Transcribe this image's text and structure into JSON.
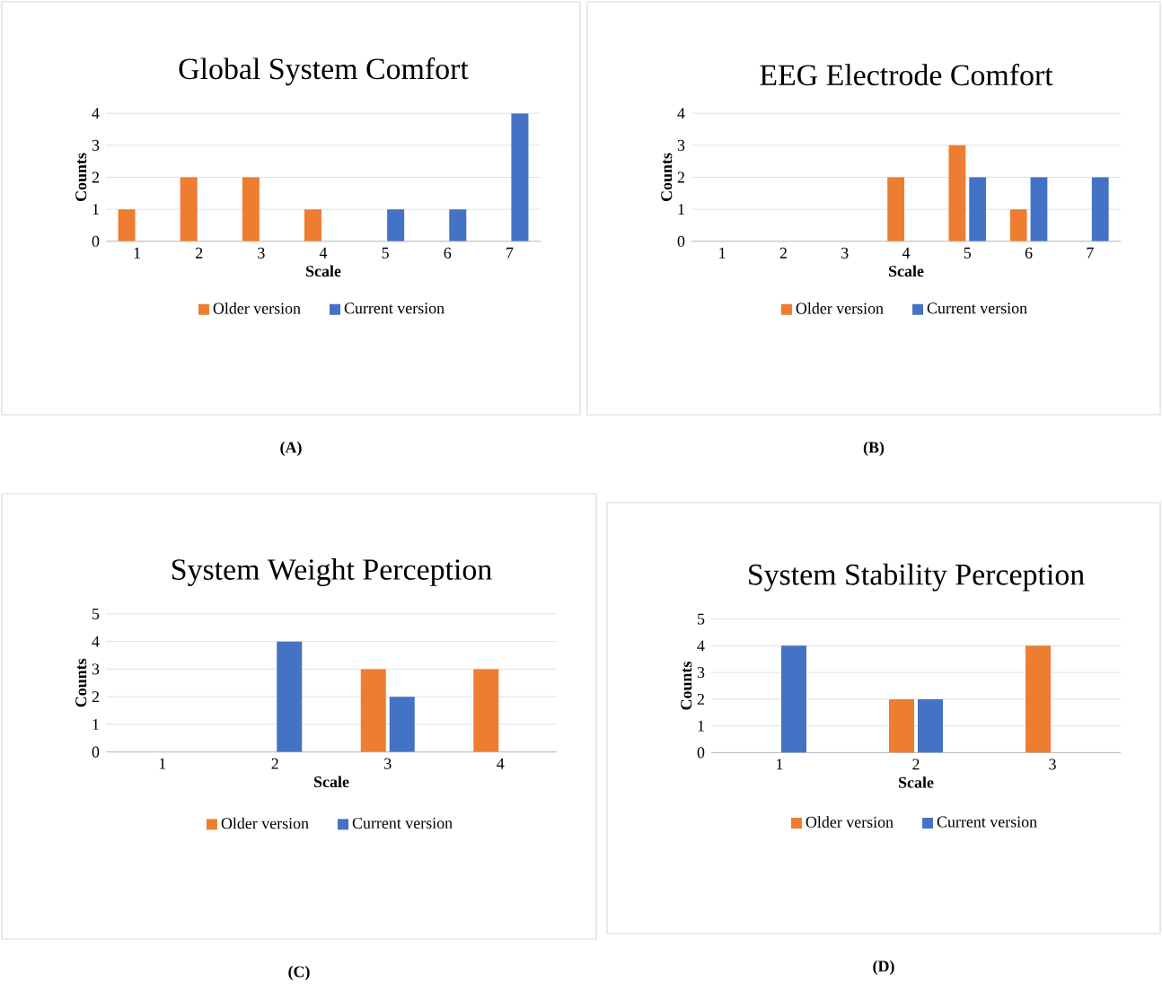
{
  "chart_data": [
    {
      "type": "bar",
      "title": "Global System Comfort",
      "xlabel": "Scale",
      "ylabel": "Counts",
      "categories": [
        "1",
        "2",
        "3",
        "4",
        "5",
        "6",
        "7"
      ],
      "series": [
        {
          "name": "Older version",
          "color": "#ed7d31",
          "values": [
            1,
            2,
            2,
            1,
            0,
            0,
            0
          ]
        },
        {
          "name": "Current version",
          "color": "#4472c4",
          "values": [
            0,
            0,
            0,
            0,
            1,
            1,
            4
          ]
        }
      ],
      "ylim": [
        0,
        4
      ],
      "yticks": [
        0,
        1,
        2,
        3,
        4
      ],
      "grid": "y",
      "legend": "bottom",
      "annotations": [
        "(A)"
      ]
    },
    {
      "type": "bar",
      "title": "EEG Electrode Comfort",
      "xlabel": "Scale",
      "ylabel": "Counts",
      "categories": [
        "1",
        "2",
        "3",
        "4",
        "5",
        "6",
        "7"
      ],
      "series": [
        {
          "name": "Older version",
          "color": "#ed7d31",
          "values": [
            0,
            0,
            0,
            2,
            3,
            1,
            0
          ]
        },
        {
          "name": "Current version",
          "color": "#4472c4",
          "values": [
            0,
            0,
            0,
            0,
            2,
            2,
            2
          ]
        }
      ],
      "ylim": [
        0,
        4
      ],
      "yticks": [
        0,
        1,
        2,
        3,
        4
      ],
      "grid": "y",
      "legend": "bottom",
      "annotations": [
        "(B)"
      ]
    },
    {
      "type": "bar",
      "title": "System Weight Perception",
      "xlabel": "Scale",
      "ylabel": "Counts",
      "categories": [
        "1",
        "2",
        "3",
        "4"
      ],
      "series": [
        {
          "name": "Older version",
          "color": "#ed7d31",
          "values": [
            0,
            0,
            3,
            3
          ]
        },
        {
          "name": "Current version",
          "color": "#4472c4",
          "values": [
            0,
            4,
            2,
            0
          ]
        }
      ],
      "ylim": [
        0,
        5
      ],
      "yticks": [
        0,
        1,
        2,
        3,
        4,
        5
      ],
      "grid": "y",
      "legend": "bottom",
      "annotations": [
        "(C)"
      ]
    },
    {
      "type": "bar",
      "title": "System Stability Perception",
      "xlabel": "Scale",
      "ylabel": "Counts",
      "categories": [
        "1",
        "2",
        "3"
      ],
      "series": [
        {
          "name": "Older version",
          "color": "#ed7d31",
          "values": [
            0,
            2,
            4
          ]
        },
        {
          "name": "Current version",
          "color": "#4472c4",
          "values": [
            4,
            2,
            0
          ]
        }
      ],
      "ylim": [
        0,
        5
      ],
      "yticks": [
        0,
        1,
        2,
        3,
        4,
        5
      ],
      "grid": "y",
      "legend": "bottom",
      "annotations": [
        "(D)"
      ]
    }
  ]
}
